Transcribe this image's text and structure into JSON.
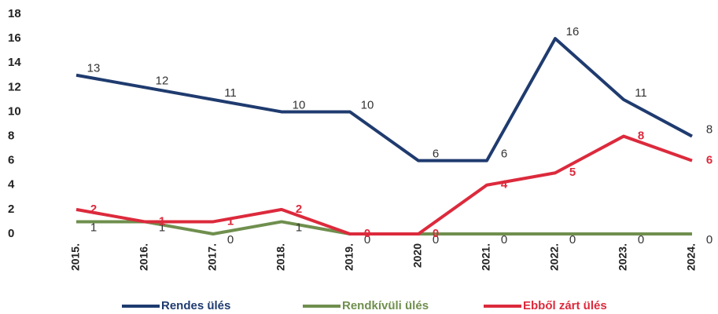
{
  "chart_data": {
    "type": "line",
    "categories": [
      "2015.",
      "2016.",
      "2017.",
      "2018.",
      "2019.",
      "2020",
      "2021.",
      "2022.",
      "2023.",
      "2024."
    ],
    "series": [
      {
        "name": "Rendes ülés",
        "color": "#1f3b6f",
        "values": [
          13,
          12,
          11,
          10,
          10,
          6,
          6,
          16,
          11,
          8
        ]
      },
      {
        "name": "Rendkívüli ülés",
        "color": "#6f8f4e",
        "values": [
          1,
          1,
          0,
          1,
          0,
          0,
          0,
          0,
          0,
          0
        ]
      },
      {
        "name": "Ebből zárt ülés",
        "color": "#dc2a3c",
        "values": [
          2,
          1,
          1,
          2,
          0,
          0,
          4,
          5,
          8,
          6
        ]
      }
    ],
    "ylim": [
      0,
      18
    ],
    "yticks": [
      0,
      2,
      4,
      6,
      8,
      10,
      12,
      14,
      16,
      18
    ],
    "grid": false,
    "legend": "bottom"
  }
}
